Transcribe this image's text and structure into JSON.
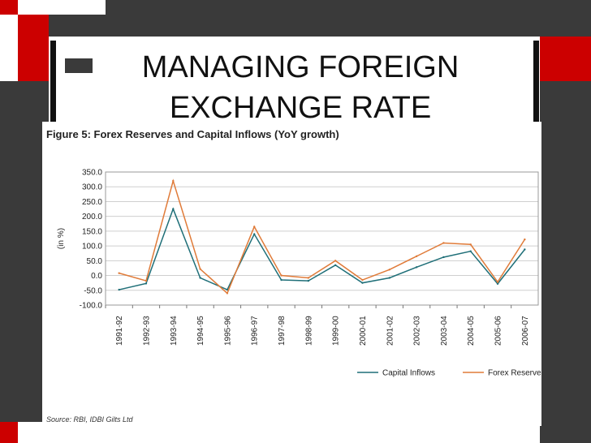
{
  "slide": {
    "title_line1": "MANAGING FOREIGN",
    "title_line2": "EXCHANGE RATE",
    "colors": {
      "background": "#3a3a3a",
      "accent_red": "#cc0000",
      "slide": "#ffffff"
    }
  },
  "figure": {
    "title": "Figure 5: Forex Reserves and Capital Inflows (YoY growth)",
    "source": "Source: RBI, IDBI Gilts Ltd"
  },
  "chart_data": {
    "type": "line",
    "ylabel": "(in %)",
    "xlabel": "",
    "ylim": [
      -100,
      350
    ],
    "yticks": [
      "350.0",
      "300.0",
      "250.0",
      "200.0",
      "150.0",
      "100.0",
      "50.0",
      "0.0",
      "-50.0",
      "-100.0"
    ],
    "grid": true,
    "legend_position": "bottom-right",
    "categories": [
      "1991-92",
      "1992-93",
      "1993-94",
      "1994-95",
      "1995-96",
      "1996-97",
      "1997-98",
      "1998-99",
      "1999-00",
      "2000-01",
      "2001-02",
      "2002-03",
      "2003-04",
      "2004-05",
      "2005-06",
      "2006-07"
    ],
    "series": [
      {
        "name": "Capital Inflows",
        "color": "#1f6f78",
        "values": [
          -48,
          -27,
          225,
          -8,
          -48,
          140,
          -15,
          -18,
          35,
          -25,
          -8,
          28,
          62,
          82,
          -28,
          88
        ]
      },
      {
        "name": "Forex Reserves",
        "color": "#e07b39",
        "values": [
          8,
          -18,
          320,
          22,
          -60,
          165,
          0,
          -8,
          50,
          -15,
          20,
          65,
          110,
          105,
          -22,
          122
        ]
      }
    ]
  }
}
